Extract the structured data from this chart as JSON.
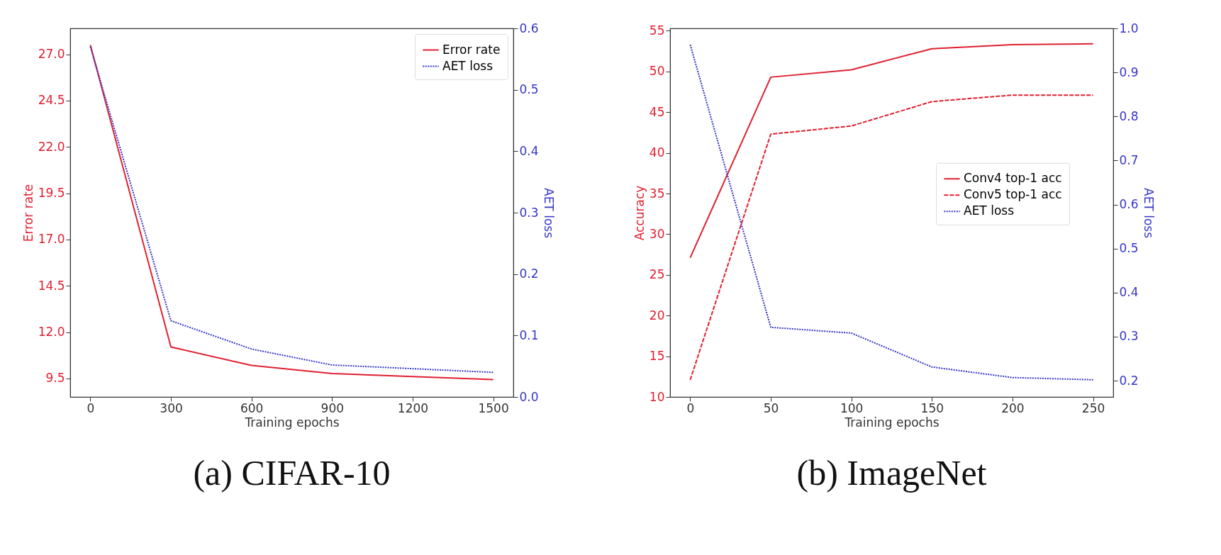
{
  "chart_data": [
    {
      "type": "line",
      "title": "(a) CIFAR-10",
      "xlabel": "Training epochs",
      "ylabel": "Error rate",
      "y2label": "AET loss",
      "x": [
        0,
        300,
        600,
        900,
        1200,
        1500
      ],
      "series": [
        {
          "name": "Error rate",
          "color": "#e02030",
          "line_style": "solid",
          "values": [
            27.5,
            11.2,
            10.2,
            9.76,
            9.6,
            9.44
          ]
        },
        {
          "name": "AET loss",
          "color": "#3535c8",
          "line_style": "dotted",
          "axis": "y2",
          "values": [
            0.57,
            0.124,
            0.078,
            0.052,
            0.046,
            0.04
          ]
        }
      ],
      "xlim": [
        -75,
        1575
      ],
      "xticks": [
        0,
        300,
        600,
        900,
        1200,
        1500
      ],
      "ylim": [
        8.5,
        28.4
      ],
      "yticks": [
        {
          "value": 9.5,
          "label": "9.5"
        },
        {
          "value": 12,
          "label": "12.0"
        },
        {
          "value": 14.5,
          "label": "14.5"
        },
        {
          "value": 17,
          "label": "17.0"
        },
        {
          "value": 19.5,
          "label": "19.5"
        },
        {
          "value": 22,
          "label": "22.0"
        },
        {
          "value": 24.5,
          "label": "24.5"
        },
        {
          "value": 27,
          "label": "27.0"
        }
      ],
      "y2lim": [
        0,
        0.6
      ],
      "y2ticks": [
        {
          "value": 0,
          "label": "0.0"
        },
        0.1,
        0.2,
        0.3,
        0.4,
        0.5,
        0.6
      ],
      "grid": false,
      "legend": "top right",
      "marker": "none"
    },
    {
      "type": "line",
      "title": "(b) ImageNet",
      "xlabel": "Training epochs",
      "ylabel": "Accuracy",
      "y2label": "AET loss",
      "x": [
        0,
        50,
        100,
        150,
        200,
        250
      ],
      "series": [
        {
          "name": "Conv4 top-1 acc",
          "color": "#e02030",
          "line_style": "solid",
          "values": [
            27.1,
            49.3,
            50.2,
            52.8,
            53.3,
            53.4
          ]
        },
        {
          "name": "Conv5 top-1 acc",
          "color": "#e02030",
          "line_style": "dashed",
          "values": [
            12.1,
            42.3,
            43.3,
            46.3,
            47.1,
            47.1
          ]
        },
        {
          "name": "AET loss",
          "color": "#3535c8",
          "line_style": "dotted",
          "axis": "y2",
          "values": [
            0.963,
            0.321,
            0.308,
            0.231,
            0.207,
            0.202
          ]
        }
      ],
      "xlim": [
        -12.5,
        262.5
      ],
      "xticks": [
        0,
        50,
        100,
        150,
        200,
        250
      ],
      "ylim": [
        10,
        55.3
      ],
      "yticks": [
        10,
        15,
        20,
        25,
        30,
        35,
        40,
        45,
        50,
        55
      ],
      "y2lim": [
        0.163,
        1.0
      ],
      "y2ticks": [
        0.2,
        0.3,
        0.4,
        0.5,
        0.6,
        0.7,
        0.8,
        0.9,
        {
          "value": 1,
          "label": "1.0"
        }
      ],
      "grid": false,
      "legend": "right",
      "marker": "none"
    }
  ]
}
